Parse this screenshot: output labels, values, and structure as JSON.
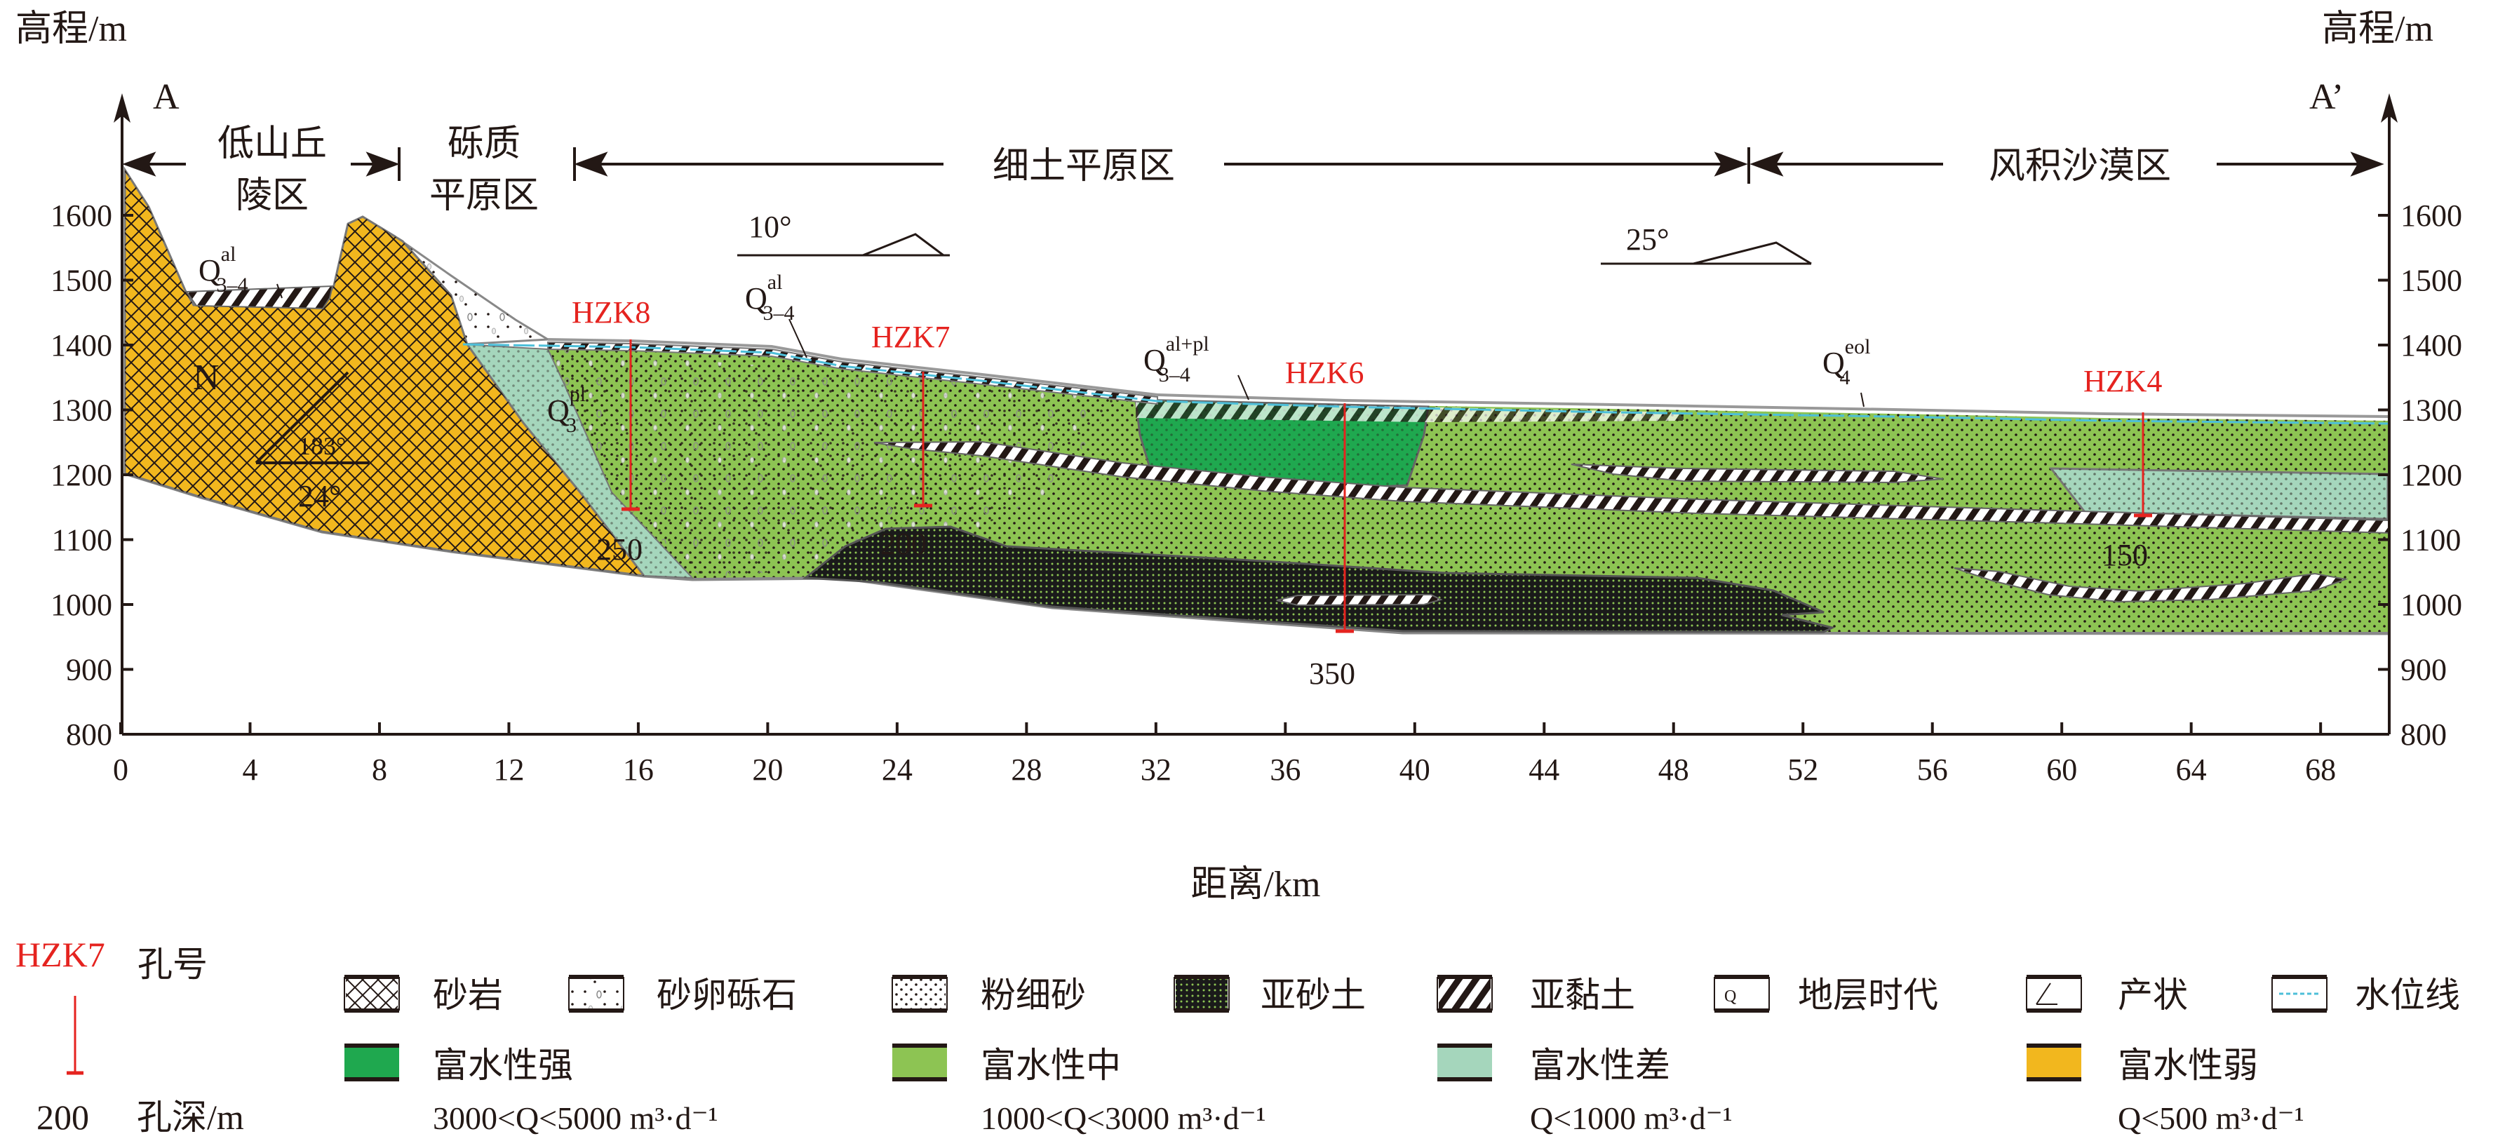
{
  "axes": {
    "left_title": "高程/m",
    "right_title": "高程/m",
    "x_title": "距离/km",
    "y_ticks": [
      1600,
      1500,
      1400,
      1300,
      1200,
      1100,
      1000,
      900,
      800
    ],
    "x_ticks": [
      0,
      4,
      8,
      12,
      16,
      20,
      24,
      28,
      32,
      36,
      40,
      44,
      48,
      52,
      56,
      60,
      64,
      68
    ],
    "start_label": "A",
    "end_label": "A’"
  },
  "zones": {
    "z1_line1": "低山丘",
    "z1_line2": "陵区",
    "z2_line1": "砾质",
    "z2_line2": "平原区",
    "z3": "细土平原区",
    "z4": "风积沙漠区"
  },
  "dips": {
    "d1": "10°",
    "d2": "25°",
    "strike": "183°",
    "dip": "24°"
  },
  "strata": {
    "n": "N",
    "q1": {
      "base": "Q",
      "sup": "al",
      "sub": "3–4"
    },
    "q2": {
      "base": "Q",
      "sup": "pl",
      "sub": "3"
    },
    "q3": {
      "base": "Q",
      "sup": "al",
      "sub": "3–4"
    },
    "q4": {
      "base": "Q",
      "sup": "al+pl",
      "sub": "3–4"
    },
    "q5": {
      "base": "Q",
      "sup": "eol",
      "sub": "4"
    }
  },
  "boreholes": [
    {
      "id": "HZK8",
      "depth": "250"
    },
    {
      "id": "HZK7",
      "depth": "200"
    },
    {
      "id": "HZK6",
      "depth": "350"
    },
    {
      "id": "HZK4",
      "depth": "150"
    }
  ],
  "legend": {
    "hole_id_sample": "HZK7",
    "hole_id_label": "孔号",
    "hole_depth_sample": "200",
    "hole_depth_label": "孔深/m",
    "lithology": [
      "砂岩",
      "砂卵砾石",
      "粉细砂",
      "亚砂土",
      "亚黏土",
      "地层时代",
      "产状",
      "水位线"
    ],
    "water": [
      {
        "label": "富水性强",
        "range": "3000<Q<5000 m³·d⁻¹",
        "color": "#1FA84F"
      },
      {
        "label": "富水性中",
        "range": "1000<Q<3000 m³·d⁻¹",
        "color": "#8DC453"
      },
      {
        "label": "富水性差",
        "range": "Q<1000 m³·d⁻¹",
        "color": "#A5D6BC"
      },
      {
        "label": "富水性弱",
        "range": "Q<500 m³·d⁻¹",
        "color": "#F2B71E"
      }
    ]
  }
}
